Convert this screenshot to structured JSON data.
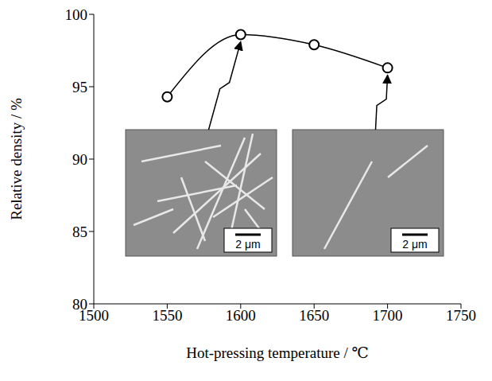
{
  "chart_data": {
    "type": "line",
    "x_label": "Hot-pressing temperature / ℃",
    "y_label": "Relative density / %",
    "x": [
      1550,
      1600,
      1650,
      1700
    ],
    "values": [
      94.3,
      98.6,
      97.9,
      96.3
    ],
    "color": "#000000",
    "marker": "circle",
    "line_style": "solid",
    "xlim": [
      1500,
      1750
    ],
    "xticks": [
      1500,
      1550,
      1600,
      1650,
      1700,
      1750
    ],
    "ylim": [
      80,
      100
    ],
    "yticks": [
      80,
      85,
      90,
      95,
      100
    ],
    "grid": false,
    "insets": [
      {
        "x": 1600,
        "scale_bar": "2 μm"
      },
      {
        "x": 1700,
        "scale_bar": "2 μm"
      }
    ]
  }
}
